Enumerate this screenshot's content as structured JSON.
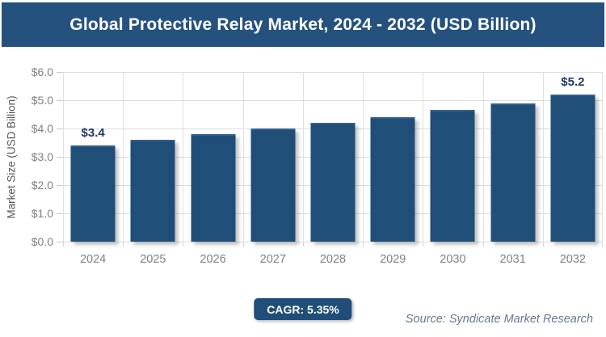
{
  "header": {
    "title": "Global Protective Relay Market, 2024 - 2032 (USD Billion)",
    "bg_color": "#25517f",
    "text_color": "#ffffff"
  },
  "chart_data": {
    "type": "bar",
    "title": "Global Protective Relay Market, 2024 - 2032 (USD Billion)",
    "categories": [
      "2024",
      "2025",
      "2026",
      "2027",
      "2028",
      "2029",
      "2030",
      "2031",
      "2032"
    ],
    "values": [
      3.4,
      3.6,
      3.8,
      4.0,
      4.2,
      4.4,
      4.65,
      4.9,
      5.2
    ],
    "value_labels": [
      {
        "index": 0,
        "text": "$3.4"
      },
      {
        "index": 8,
        "text": "$5.2"
      }
    ],
    "xlabel": "",
    "ylabel": "Market Size (USD Billion)",
    "ylim": [
      0,
      6
    ],
    "ytick_labels": [
      "$0.0",
      "$1.0",
      "$2.0",
      "$3.0",
      "$4.0",
      "$5.0",
      "$6.0"
    ],
    "grid": true,
    "legend": "none",
    "bar_color": "#1f4e79"
  },
  "footer": {
    "cagr_label": "CAGR: 5.35%",
    "badge_bg": "#1f4e79",
    "source": "Source: Syndicate Market Research"
  }
}
